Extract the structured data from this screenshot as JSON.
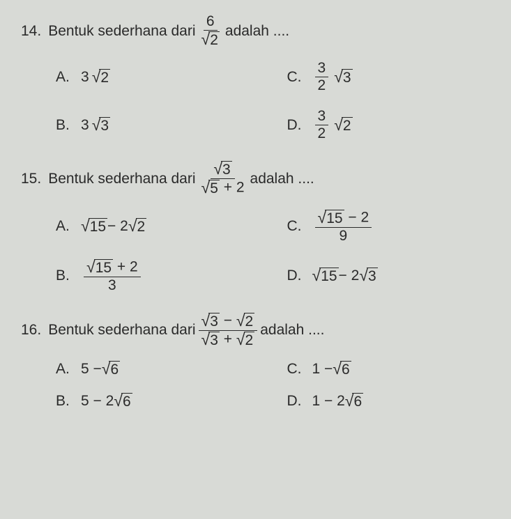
{
  "background_color": "#d8dad6",
  "text_color": "#2a2a2a",
  "font_family": "Arial",
  "base_fontsize_pt": 16,
  "questions": [
    {
      "number": "14.",
      "stem_before": "Bentuk sederhana dari",
      "stem_expr": {
        "frac_num": "6",
        "frac_den_sqrt": "2"
      },
      "stem_after": "adalah ....",
      "options": [
        {
          "letter": "A.",
          "plain_before": "3",
          "sqrt": "2"
        },
        {
          "letter": "C.",
          "frac_num": "3",
          "frac_den": "2",
          "sqrt": "3"
        },
        {
          "letter": "B.",
          "plain_before": "3",
          "sqrt": "3"
        },
        {
          "letter": "D.",
          "frac_num": "3",
          "frac_den": "2",
          "sqrt": "2"
        }
      ]
    },
    {
      "number": "15.",
      "stem_before": "Bentuk sederhana dari",
      "stem_expr": {
        "frac_num_sqrt": "3",
        "frac_den_sqrt": "5",
        "frac_den_after": " + 2"
      },
      "stem_after": "adalah ....",
      "options": [
        {
          "letter": "A.",
          "sqrt": "15",
          "plain_after": " − 2",
          "sqrt2": "2"
        },
        {
          "letter": "C.",
          "frac_num_sqrt": "15",
          "frac_num_after": " − 2",
          "frac_den": "9"
        },
        {
          "letter": "B.",
          "frac_num_sqrt": "15",
          "frac_num_after": " + 2",
          "frac_den": "3"
        },
        {
          "letter": "D.",
          "sqrt": "15",
          "plain_after": " − 2",
          "sqrt2": "3"
        }
      ]
    },
    {
      "number": "16.",
      "stem_before": "Bentuk sederhana dari",
      "stem_expr": {
        "frac_num_sqrt": "3",
        "frac_num_mid": " − ",
        "frac_num_sqrt2": "2",
        "frac_den_sqrt": "3",
        "frac_den_mid": " + ",
        "frac_den_sqrt2": "2"
      },
      "stem_after": "adalah ....",
      "options": [
        {
          "letter": "A.",
          "plain_before": "5 − ",
          "sqrt": "6"
        },
        {
          "letter": "C.",
          "plain_before": "1 − ",
          "sqrt": "6"
        },
        {
          "letter": "B.",
          "plain_before": "5 − 2",
          "sqrt": "6"
        },
        {
          "letter": "D.",
          "plain_before": "1 − 2",
          "sqrt": "6"
        }
      ]
    }
  ]
}
